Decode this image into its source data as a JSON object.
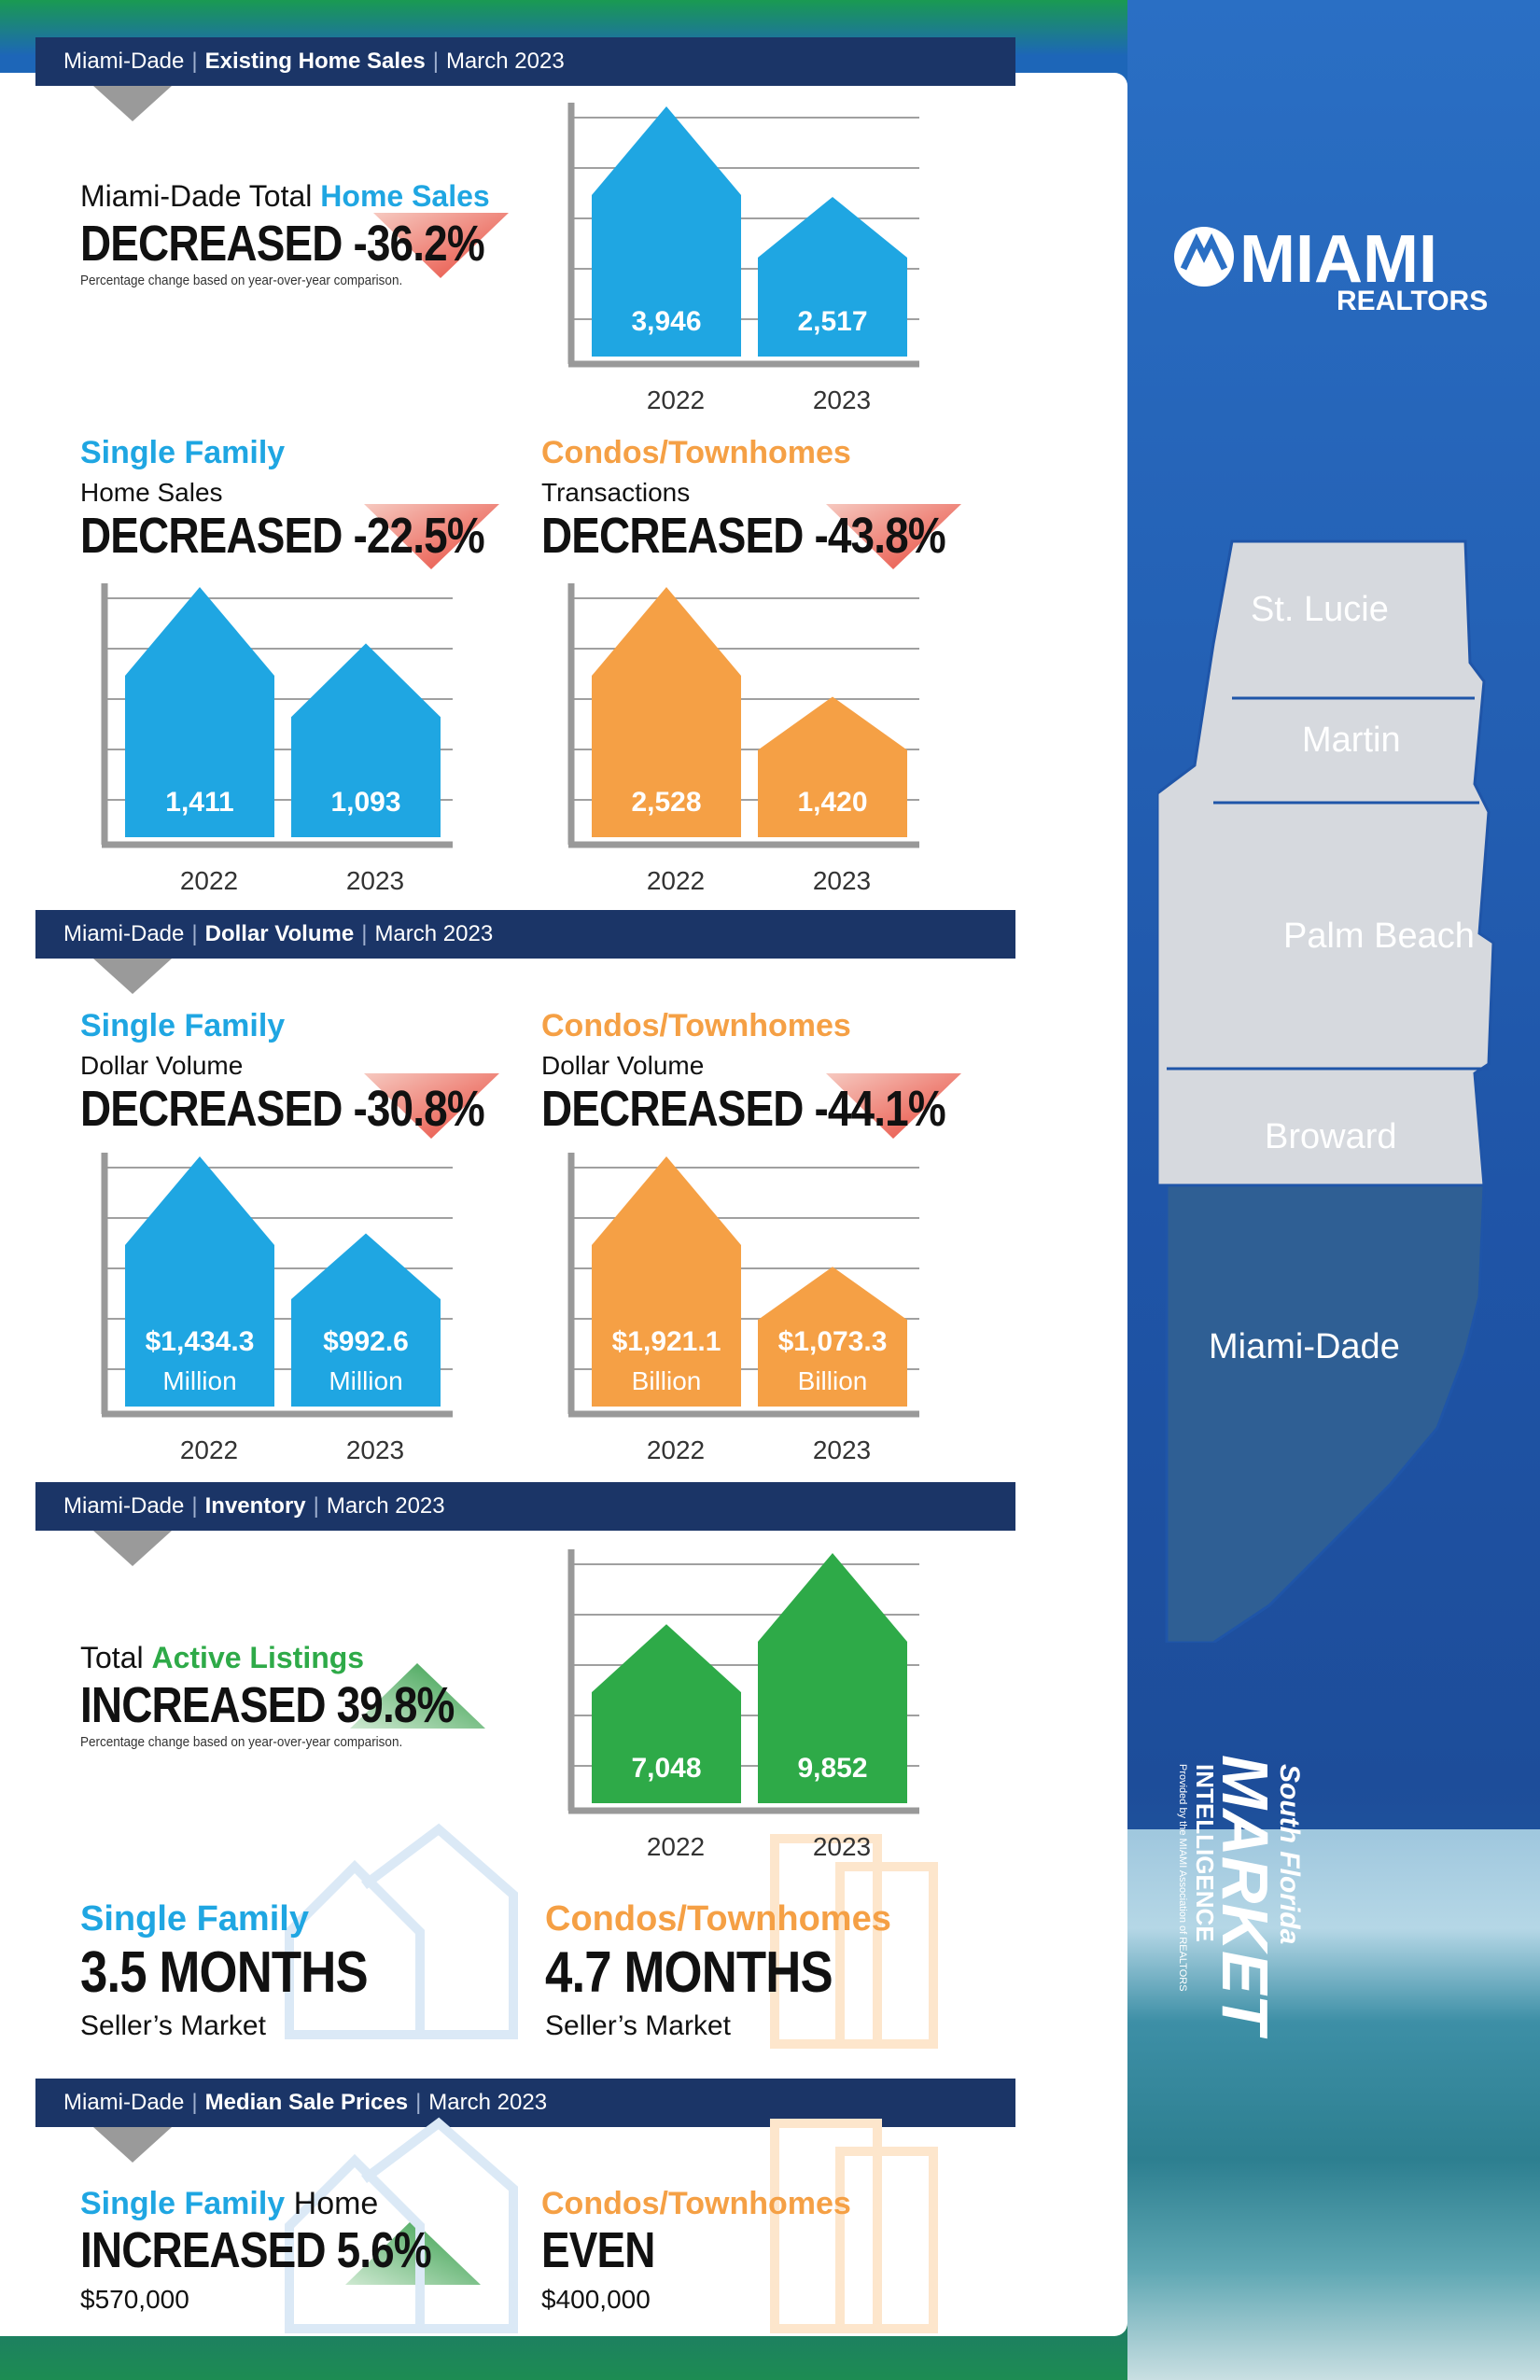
{
  "colors": {
    "blue": "#1fa6e2",
    "orange": "#f5a045",
    "green": "#2eaa48",
    "band": "#1b3567",
    "grid": "#a0a0a0"
  },
  "bands": [
    {
      "region": "Miami-Dade",
      "topic": "Existing Home Sales",
      "date": "March 2023"
    },
    {
      "region": "Miami-Dade",
      "topic": "Dollar Volume",
      "date": "March 2023"
    },
    {
      "region": "Miami-Dade",
      "topic": "Inventory",
      "date": "March 2023"
    },
    {
      "region": "Miami-Dade",
      "topic": "Median Sale Prices",
      "date": "March 2023"
    }
  ],
  "sales": {
    "pre": "Miami-Dade Total ",
    "highlight": "Home Sales",
    "headline": "DECREASED -36.2%",
    "note": "Percentage change based on year-over-year comparison.",
    "sf": {
      "title": "Single Family",
      "subtitle": "Home Sales",
      "headline": "DECREASED -22.5%"
    },
    "condo": {
      "title": "Condos/Townhomes",
      "subtitle": "Transactions",
      "headline": "DECREASED -43.8%"
    }
  },
  "volume": {
    "sf": {
      "title": "Single Family",
      "subtitle": "Dollar Volume",
      "headline": "DECREASED -30.8%"
    },
    "condo": {
      "title": "Condos/Townhomes",
      "subtitle": "Dollar Volume",
      "headline": "DECREASED -44.1%"
    }
  },
  "inventory": {
    "pre": "Total ",
    "highlight": "Active Listings",
    "headline": "INCREASED 39.8%",
    "note": "Percentage change based on year-over-year comparison.",
    "sf": {
      "title": "Single Family",
      "months": "3.5 MONTHS",
      "market": "Seller’s Market"
    },
    "condo": {
      "title": "Condos/Townhomes",
      "months": "4.7 MONTHS",
      "market": "Seller’s Market"
    }
  },
  "median": {
    "sf": {
      "title": "Single Family",
      "title2": " Home",
      "headline": "INCREASED 5.6%",
      "price": "$570,000"
    },
    "condo": {
      "title": "Condos/Townhomes",
      "headline": "EVEN",
      "price": "$400,000"
    }
  },
  "map": {
    "counties": [
      "St. Lucie",
      "Martin",
      "Palm Beach",
      "Broward",
      "Miami-Dade"
    ]
  },
  "logo": {
    "name": "MIAMI",
    "sub": "REALTORS"
  },
  "sidebar": {
    "line1": "South Florida",
    "line2": "MARKET",
    "line3": "INTELLIGENCE",
    "line4": "Provided by the MIAMI Association of REALTORS"
  },
  "chart_data": [
    {
      "type": "bar",
      "id": "total-sales",
      "categories": [
        "2022",
        "2023"
      ],
      "values": [
        3946,
        2517
      ],
      "labels": [
        "3,946",
        "2,517"
      ],
      "units": [
        "",
        ""
      ]
    },
    {
      "type": "bar",
      "id": "sf-sales",
      "categories": [
        "2022",
        "2023"
      ],
      "values": [
        1411,
        1093
      ],
      "labels": [
        "1,411",
        "1,093"
      ],
      "units": [
        "",
        ""
      ]
    },
    {
      "type": "bar",
      "id": "condo-sales",
      "categories": [
        "2022",
        "2023"
      ],
      "values": [
        2528,
        1420
      ],
      "labels": [
        "2,528",
        "1,420"
      ],
      "units": [
        "",
        ""
      ]
    },
    {
      "type": "bar",
      "id": "sf-volume",
      "categories": [
        "2022",
        "2023"
      ],
      "values": [
        1434.3,
        992.6
      ],
      "labels": [
        "$1,434.3",
        "$992.6"
      ],
      "units": [
        "Million",
        "Million"
      ]
    },
    {
      "type": "bar",
      "id": "condo-volume",
      "categories": [
        "2022",
        "2023"
      ],
      "values": [
        1921.1,
        1073.3
      ],
      "labels": [
        "$1,921.1",
        "$1,073.3"
      ],
      "units": [
        "Billion",
        "Billion"
      ]
    },
    {
      "type": "bar",
      "id": "active-listings",
      "categories": [
        "2022",
        "2023"
      ],
      "values": [
        7048,
        9852
      ],
      "labels": [
        "7,048",
        "9,852"
      ],
      "units": [
        "",
        ""
      ]
    }
  ]
}
